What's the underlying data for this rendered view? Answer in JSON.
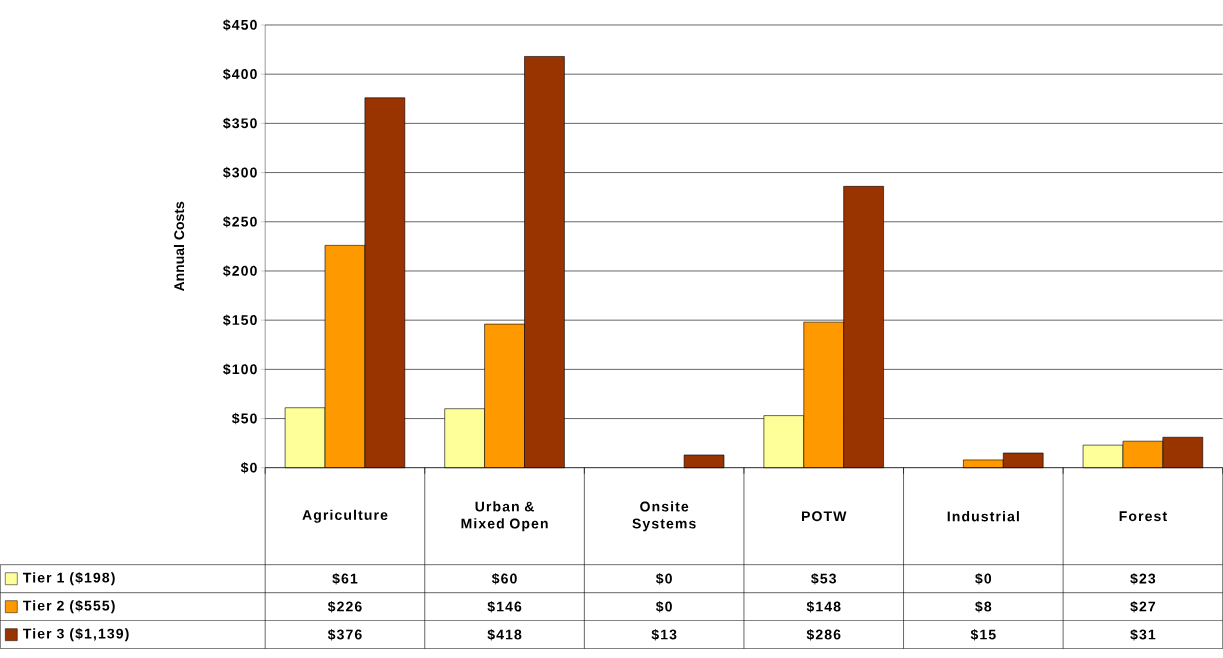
{
  "chart_data": {
    "type": "bar",
    "ylabel": "Annual Costs",
    "categories": [
      "Agriculture",
      "Urban & Mixed Open",
      "Onsite Systems",
      "POTW",
      "Industrial",
      "Forest"
    ],
    "series": [
      {
        "name": "Tier 1 ($198)",
        "color": "#ffff99",
        "values": [
          61,
          60,
          0,
          53,
          0,
          23
        ],
        "value_labels": [
          "$61",
          "$60",
          "$0",
          "$53",
          "$0",
          "$23"
        ]
      },
      {
        "name": "Tier 2 ($555)",
        "color": "#ff9900",
        "values": [
          226,
          146,
          0,
          148,
          8,
          27
        ],
        "value_labels": [
          "$226",
          "$146",
          "$0",
          "$148",
          "$8",
          "$27"
        ]
      },
      {
        "name": "Tier 3 ($1,139)",
        "color": "#993300",
        "values": [
          376,
          418,
          13,
          286,
          15,
          31
        ],
        "value_labels": [
          "$376",
          "$418",
          "$13",
          "$286",
          "$15",
          "$31"
        ]
      }
    ],
    "ylim": [
      0,
      450
    ],
    "yticks": [
      {
        "value": 0,
        "label": "$0"
      },
      {
        "value": 50,
        "label": "$50"
      },
      {
        "value": 100,
        "label": "$100"
      },
      {
        "value": 150,
        "label": "$150"
      },
      {
        "value": 200,
        "label": "$200"
      },
      {
        "value": 250,
        "label": "$250"
      },
      {
        "value": 300,
        "label": "$300"
      },
      {
        "value": 350,
        "label": "$350"
      },
      {
        "value": 400,
        "label": "$400"
      },
      {
        "value": 450,
        "label": "$450"
      }
    ],
    "grid": "y",
    "legend": "bottom left"
  }
}
